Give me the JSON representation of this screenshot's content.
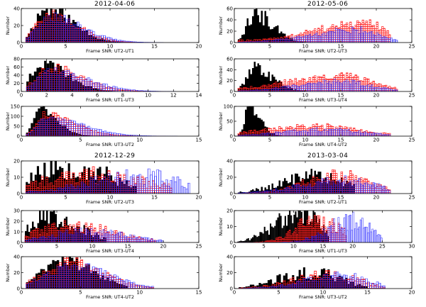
{
  "figure": {
    "group_titles": [
      "2012-04-06",
      "2012-05-06",
      "2012-12-29",
      "2013-03-04"
    ],
    "ylabel": "Number"
  },
  "chart_data": [
    {
      "type": "histogram",
      "group": "2012-04-06",
      "xlabel": "Frame SNR: UT2-UT1",
      "ylabel": "Number",
      "xlim": [
        0,
        20
      ],
      "ylim": [
        0,
        40
      ],
      "xticks": [
        0,
        5,
        10,
        15,
        20
      ],
      "yticks": [
        0,
        20,
        40
      ],
      "bin_width": 0.25,
      "black_peak": [
        2.8,
        40
      ],
      "black_spread": [
        1.2,
        3.0
      ],
      "black_noise": 0.25,
      "red_peak": [
        3.0,
        34
      ],
      "red_spread": [
        1.3,
        3.2
      ],
      "red_noise": 0.2,
      "blue_peak": [
        3.2,
        30
      ],
      "blue_spread": [
        1.4,
        3.6
      ],
      "blue_noise": 0.2,
      "black_max": 13,
      "red_max": 15,
      "blue_max": 16
    },
    {
      "type": "histogram",
      "group": "2012-05-06",
      "xlabel": "Frame SNR: UT2-UT3",
      "ylabel": "Number",
      "xlim": [
        0,
        25
      ],
      "ylim": [
        0,
        60
      ],
      "xticks": [
        0,
        5,
        10,
        15,
        20,
        25
      ],
      "yticks": [
        0,
        20,
        40,
        60
      ],
      "bin_width": 0.25,
      "black_peak": [
        3.0,
        50
      ],
      "black_spread": [
        1.2,
        2.5
      ],
      "black_noise": 0.35,
      "red_peak": [
        18.5,
        30
      ],
      "red_spread": [
        7.0,
        3.0
      ],
      "red_noise": 0.3,
      "red_floor": 4,
      "blue_peak": [
        17.5,
        22
      ],
      "blue_spread": [
        6.5,
        3.0
      ],
      "blue_noise": 0.3,
      "black_max": 12,
      "red_max": 22,
      "blue_max": 23
    },
    {
      "type": "histogram",
      "group": "2012-04-06",
      "xlabel": "Frame SNR: UT1-UT3",
      "ylabel": "Number",
      "xlim": [
        0,
        14
      ],
      "ylim": [
        0,
        80
      ],
      "xticks": [
        0,
        2,
        4,
        6,
        8,
        10,
        12,
        14
      ],
      "yticks": [
        0,
        20,
        40,
        60,
        80
      ],
      "bin_width": 0.2,
      "black_peak": [
        1.6,
        70
      ],
      "black_spread": [
        0.8,
        2.0
      ],
      "black_noise": 0.2,
      "red_peak": [
        2.2,
        60
      ],
      "red_spread": [
        1.0,
        2.5
      ],
      "red_noise": 0.2,
      "blue_peak": [
        2.4,
        50
      ],
      "blue_spread": [
        1.1,
        2.8
      ],
      "blue_noise": 0.2,
      "black_max": 9,
      "red_max": 11,
      "blue_max": 12
    },
    {
      "type": "histogram",
      "group": "2012-05-06",
      "xlabel": "Frame SNR: UT3-UT4",
      "ylabel": "Number",
      "xlim": [
        0,
        25
      ],
      "ylim": [
        0,
        60
      ],
      "xticks": [
        0,
        5,
        10,
        15,
        20,
        25
      ],
      "yticks": [
        0,
        20,
        40,
        60
      ],
      "bin_width": 0.25,
      "black_peak": [
        3.0,
        42
      ],
      "black_spread": [
        1.2,
        2.5
      ],
      "black_noise": 0.35,
      "red_peak": [
        15.0,
        28
      ],
      "red_spread": [
        7.0,
        4.0
      ],
      "red_noise": 0.3,
      "red_floor": 3,
      "blue_peak": [
        15.0,
        18
      ],
      "blue_spread": [
        6.0,
        4.0
      ],
      "blue_noise": 0.3,
      "black_max": 12,
      "red_max": 23,
      "blue_max": 23
    },
    {
      "type": "histogram",
      "group": "2012-04-06",
      "xlabel": "Frame SNR: UT3-UT2",
      "ylabel": "Number",
      "xlim": [
        0,
        15
      ],
      "ylim": [
        0,
        150
      ],
      "xticks": [
        0,
        5,
        10,
        15
      ],
      "yticks": [
        0,
        50,
        100,
        150
      ],
      "bin_width": 0.2,
      "black_peak": [
        1.5,
        140
      ],
      "black_spread": [
        0.5,
        1.5
      ],
      "black_noise": 0.15,
      "red_peak": [
        2.0,
        110
      ],
      "red_spread": [
        0.7,
        2.5
      ],
      "red_noise": 0.15,
      "blue_peak": [
        2.2,
        90
      ],
      "blue_spread": [
        0.8,
        3.0
      ],
      "blue_noise": 0.15,
      "black_max": 9,
      "red_max": 12,
      "blue_max": 13
    },
    {
      "type": "histogram",
      "group": "2012-05-06",
      "xlabel": "Frame SNR: UT4-UT2",
      "ylabel": "Number",
      "xlim": [
        0,
        25
      ],
      "ylim": [
        0,
        100
      ],
      "xticks": [
        0,
        5,
        10,
        15,
        20,
        25
      ],
      "yticks": [
        0,
        50,
        100
      ],
      "bin_width": 0.25,
      "black_peak": [
        2.2,
        100
      ],
      "black_spread": [
        0.7,
        1.5
      ],
      "black_noise": 0.3,
      "red_peak": [
        12.0,
        30
      ],
      "red_spread": [
        7.0,
        5.0
      ],
      "red_noise": 0.35,
      "red_floor": 5,
      "blue_peak": [
        13.0,
        22
      ],
      "blue_spread": [
        6.0,
        5.0
      ],
      "blue_noise": 0.35,
      "black_max": 7,
      "red_max": 22,
      "blue_max": 22
    },
    {
      "type": "histogram",
      "group": "2012-12-29",
      "xlabel": "Frame SNR: UT2-UT3",
      "ylabel": "Number",
      "xlim": [
        0,
        20
      ],
      "ylim": [
        0,
        20
      ],
      "xticks": [
        0,
        5,
        10,
        15,
        20
      ],
      "yticks": [
        0,
        10,
        20
      ],
      "bin_width": 0.25,
      "black_peak": [
        5.0,
        17
      ],
      "black_spread": [
        4.0,
        5.0
      ],
      "black_noise": 0.5,
      "red_peak": [
        8.0,
        10
      ],
      "red_spread": [
        6.0,
        6.0
      ],
      "red_noise": 0.5,
      "red_floor": 2,
      "blue_peak": [
        14.0,
        11
      ],
      "blue_spread": [
        6.0,
        4.0
      ],
      "blue_noise": 0.5,
      "black_max": 13,
      "red_max": 17,
      "blue_max": 19
    },
    {
      "type": "histogram",
      "group": "2013-03-04",
      "xlabel": "Frame SNR: UT2-UT1",
      "ylabel": "Number",
      "xlim": [
        0,
        25
      ],
      "ylim": [
        0,
        40
      ],
      "xticks": [
        0,
        5,
        10,
        15,
        20,
        25
      ],
      "yticks": [
        0,
        20,
        40
      ],
      "bin_width": 0.25,
      "black_peak": [
        12.0,
        22
      ],
      "black_spread": [
        5.0,
        3.5
      ],
      "black_noise": 0.45,
      "red_peak": [
        15.0,
        22
      ],
      "red_spread": [
        5.0,
        4.0
      ],
      "red_noise": 0.4,
      "blue_peak": [
        15.5,
        16
      ],
      "blue_spread": [
        6.0,
        4.5
      ],
      "blue_noise": 0.4,
      "black_max": 17,
      "red_max": 22,
      "blue_max": 22
    },
    {
      "type": "histogram",
      "group": "2012-12-29",
      "xlabel": "Frame SNR: UT3-UT4",
      "ylabel": "Number",
      "xlim": [
        0,
        25
      ],
      "ylim": [
        0,
        30
      ],
      "xticks": [
        0,
        5,
        10,
        15,
        20,
        25
      ],
      "yticks": [
        0,
        10,
        20,
        30
      ],
      "bin_width": 0.25,
      "black_peak": [
        4.0,
        25
      ],
      "black_spread": [
        3.0,
        4.0
      ],
      "black_noise": 0.4,
      "red_peak": [
        7.0,
        16
      ],
      "red_spread": [
        5.0,
        6.0
      ],
      "red_noise": 0.4,
      "blue_peak": [
        9.0,
        10
      ],
      "blue_spread": [
        5.0,
        6.0
      ],
      "blue_noise": 0.4,
      "black_max": 12,
      "red_max": 19,
      "blue_max": 20
    },
    {
      "type": "histogram",
      "group": "2013-03-04",
      "xlabel": "Frame SNR: UT1-UT3",
      "ylabel": "Number",
      "xlim": [
        0,
        30
      ],
      "ylim": [
        0,
        20
      ],
      "xticks": [
        0,
        5,
        10,
        15,
        20,
        25,
        30
      ],
      "yticks": [
        0,
        10,
        20
      ],
      "bin_width": 0.25,
      "black_peak": [
        11.0,
        20
      ],
      "black_spread": [
        4.0,
        3.0
      ],
      "black_noise": 0.45,
      "red_peak": [
        14.0,
        14
      ],
      "red_spread": [
        3.5,
        4.0
      ],
      "red_noise": 0.45,
      "blue_peak": [
        20.0,
        14
      ],
      "blue_spread": [
        4.0,
        3.0
      ],
      "blue_noise": 0.5,
      "black_max": 16,
      "red_max": 19,
      "blue_max": 25
    },
    {
      "type": "histogram",
      "group": "2012-12-29",
      "xlabel": "Frame SNR: UT4-UT2",
      "ylabel": "Number",
      "xlim": [
        0,
        15
      ],
      "ylim": [
        0,
        40
      ],
      "xticks": [
        0,
        5,
        10,
        15
      ],
      "yticks": [
        0,
        20,
        40
      ],
      "bin_width": 0.2,
      "black_peak": [
        3.5,
        36
      ],
      "black_spread": [
        1.8,
        2.5
      ],
      "black_noise": 0.25,
      "red_peak": [
        4.0,
        34
      ],
      "red_spread": [
        2.0,
        2.8
      ],
      "red_noise": 0.25,
      "blue_peak": [
        4.4,
        28
      ],
      "blue_spread": [
        2.2,
        3.0
      ],
      "blue_noise": 0.25,
      "black_max": 9,
      "red_max": 11,
      "blue_max": 11
    },
    {
      "type": "histogram",
      "group": "2013-03-04",
      "xlabel": "Frame SNR: UT3-UT2",
      "ylabel": "Number",
      "xlim": [
        0,
        20
      ],
      "ylim": [
        0,
        40
      ],
      "xticks": [
        0,
        5,
        10,
        15,
        20
      ],
      "yticks": [
        0,
        20,
        40
      ],
      "bin_width": 0.25,
      "black_peak": [
        9.0,
        20
      ],
      "black_spread": [
        4.0,
        3.0
      ],
      "black_noise": 0.45,
      "red_peak": [
        11.0,
        18
      ],
      "red_spread": [
        4.0,
        3.0
      ],
      "red_noise": 0.4,
      "blue_peak": [
        12.0,
        16
      ],
      "blue_spread": [
        4.0,
        3.0
      ],
      "blue_noise": 0.4,
      "black_max": 15,
      "red_max": 17,
      "blue_max": 17
    }
  ]
}
